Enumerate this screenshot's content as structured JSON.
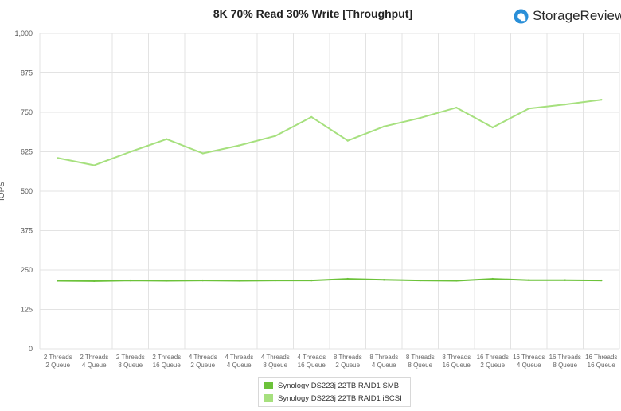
{
  "brand": {
    "name": "StorageReview",
    "logo_icon": "storagereview-logo-icon"
  },
  "chart_data": {
    "type": "line",
    "title": "8K 70% Read 30% Write [Throughput]",
    "ylabel": "IOPS",
    "ylim": [
      0,
      1000
    ],
    "yticks": [
      "0",
      "125",
      "250",
      "375",
      "500",
      "625",
      "750",
      "875",
      "1,000"
    ],
    "ytick_values": [
      0,
      125,
      250,
      375,
      500,
      625,
      750,
      875,
      1000
    ],
    "grid": true,
    "legend_position": "bottom",
    "categories": [
      [
        "2 Threads",
        "2 Queue"
      ],
      [
        "2 Threads",
        "4 Queue"
      ],
      [
        "2 Threads",
        "8 Queue"
      ],
      [
        "2 Threads",
        "16 Queue"
      ],
      [
        "4 Threads",
        "2 Queue"
      ],
      [
        "4 Threads",
        "4 Queue"
      ],
      [
        "4 Threads",
        "8 Queue"
      ],
      [
        "4 Threads",
        "16 Queue"
      ],
      [
        "8 Threads",
        "2 Queue"
      ],
      [
        "8 Threads",
        "4 Queue"
      ],
      [
        "8 Threads",
        "8 Queue"
      ],
      [
        "8 Threads",
        "16 Queue"
      ],
      [
        "16 Threads",
        "2 Queue"
      ],
      [
        "16 Threads",
        "4 Queue"
      ],
      [
        "16 Threads",
        "8 Queue"
      ],
      [
        "16 Threads",
        "16 Queue"
      ]
    ],
    "series": [
      {
        "name": "Synology DS223j 22TB RAID1 SMB",
        "color": "#6cc23a",
        "values": [
          216,
          215,
          217,
          216,
          217,
          216,
          217,
          217,
          222,
          219,
          217,
          216,
          222,
          218,
          218,
          217
        ]
      },
      {
        "name": "Synology DS223j 22TB RAID1 iSCSI",
        "color": "#a6e07e",
        "values": [
          605,
          582,
          625,
          665,
          620,
          645,
          675,
          735,
          660,
          705,
          732,
          765,
          702,
          762,
          775,
          790
        ]
      }
    ]
  }
}
